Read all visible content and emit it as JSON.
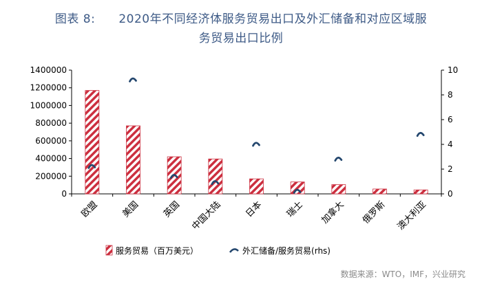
{
  "header": {
    "figure_no": "图表 8:",
    "title_line1": "2020年不同经济体服务贸易出口及外汇储备和对应区域服",
    "title_line2": "务贸易出口比例"
  },
  "colors": {
    "bar": "#cc2f3f",
    "marker": "#24476e",
    "title": "#3d5a86"
  },
  "chart_data": {
    "type": "bar",
    "categories": [
      "欧盟",
      "美国",
      "英国",
      "中国大陆",
      "日本",
      "瑞士",
      "加拿大",
      "俄罗斯",
      "澳大利亚"
    ],
    "series": [
      {
        "name": "服务贸易（百万美元）",
        "axis": "left",
        "kind": "bar",
        "values": [
          1170000,
          770000,
          420000,
          395000,
          170000,
          135000,
          105000,
          55000,
          45000
        ]
      },
      {
        "name": "外汇储备/服务贸易(rhs)",
        "axis": "right",
        "kind": "scatter",
        "values": [
          2.2,
          9.2,
          1.4,
          0.9,
          4.0,
          0.2,
          2.8,
          null,
          4.8
        ]
      }
    ],
    "ylim_left": [
      0,
      1400000
    ],
    "ylim_right": [
      0,
      10
    ],
    "left_ticks": [
      "0",
      "200000",
      "400000",
      "600000",
      "800000",
      "1000000",
      "1200000",
      "1400000"
    ],
    "right_ticks": [
      "0",
      "2",
      "4",
      "6",
      "8",
      "10"
    ],
    "legend_position": "bottom"
  },
  "source": "数据来源：WTO，IMF，兴业研究"
}
